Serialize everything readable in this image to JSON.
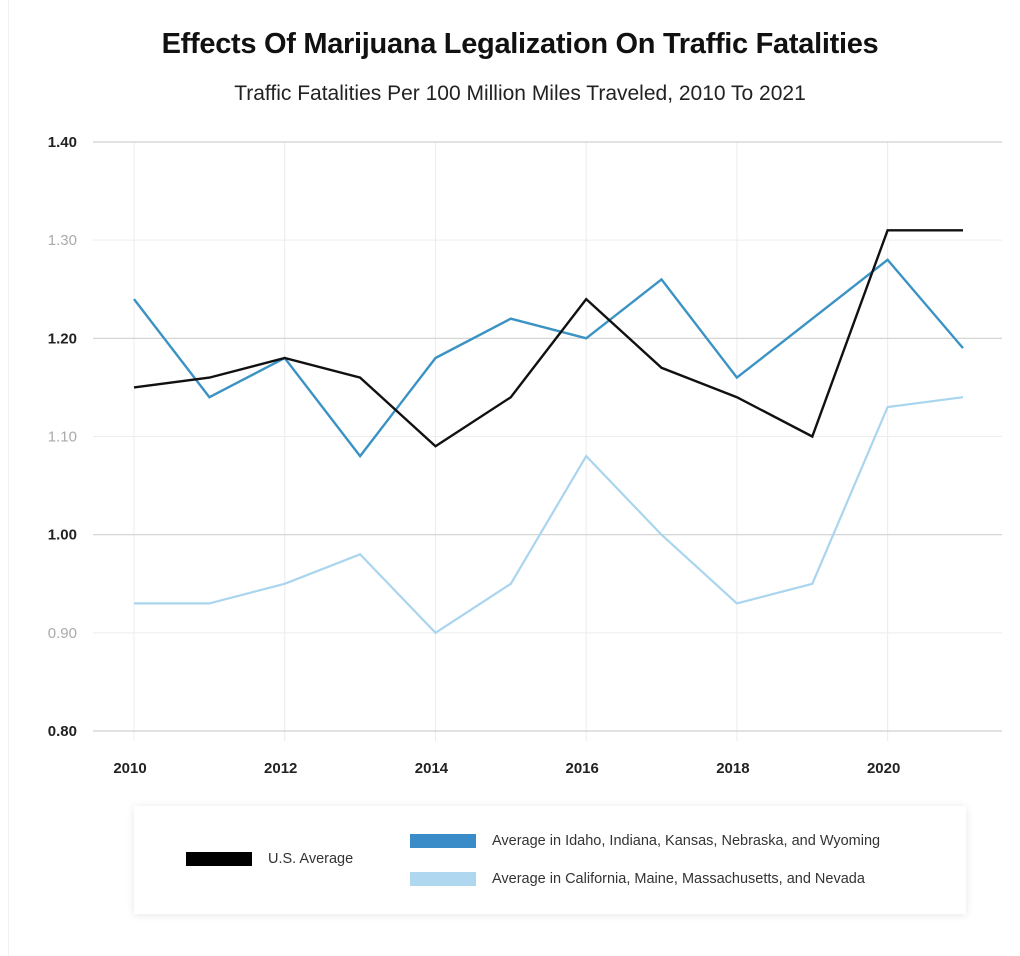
{
  "chart_data": {
    "type": "line",
    "title": "Effects Of Marijuana Legalization On Traffic Fatalities",
    "subtitle": "Traffic Fatalities Per 100 Million Miles Traveled, 2010 To 2021",
    "xlabel": "",
    "ylabel": "",
    "x": [
      2010,
      2011,
      2012,
      2013,
      2014,
      2015,
      2016,
      2017,
      2018,
      2019,
      2020,
      2021
    ],
    "xlim": [
      2010,
      2021
    ],
    "ylim": [
      0.8,
      1.4
    ],
    "x_tick_labels": [
      "2010",
      "2012",
      "2014",
      "2016",
      "2018",
      "2020"
    ],
    "x_tick_values": [
      2010,
      2012,
      2014,
      2016,
      2018,
      2020
    ],
    "y_ticks": [
      {
        "value": 1.4,
        "label": "1.40",
        "emphasis": true
      },
      {
        "value": 1.3,
        "label": "1.30",
        "emphasis": false
      },
      {
        "value": 1.2,
        "label": "1.20",
        "emphasis": true
      },
      {
        "value": 1.1,
        "label": "1.10",
        "emphasis": false
      },
      {
        "value": 1.0,
        "label": "1.00",
        "emphasis": true
      },
      {
        "value": 0.9,
        "label": "0.90",
        "emphasis": false
      },
      {
        "value": 0.8,
        "label": "0.80",
        "emphasis": true
      }
    ],
    "grid": true,
    "legend_position": "bottom",
    "series": [
      {
        "name": "U.S. Average",
        "color": "#111111",
        "legend_color": "#000000",
        "values": [
          1.15,
          1.16,
          1.18,
          1.16,
          1.09,
          1.14,
          1.24,
          1.17,
          1.14,
          1.1,
          1.31,
          1.31
        ]
      },
      {
        "name": "Average in Idaho, Indiana, Kansas, Nebraska, and Wyoming",
        "color": "#3b93c4",
        "legend_color": "#3a8cc9",
        "values": [
          1.24,
          1.14,
          1.18,
          1.08,
          1.18,
          1.22,
          1.2,
          1.26,
          1.16,
          1.22,
          1.28,
          1.19
        ]
      },
      {
        "name": "Average in California, Maine, Massachusetts, and Nevada",
        "color": "#a9d5ee",
        "legend_color": "#afd8f0",
        "values": [
          0.93,
          0.93,
          0.95,
          0.98,
          0.9,
          0.95,
          1.08,
          1.0,
          0.93,
          0.95,
          1.13,
          1.14
        ]
      }
    ]
  }
}
